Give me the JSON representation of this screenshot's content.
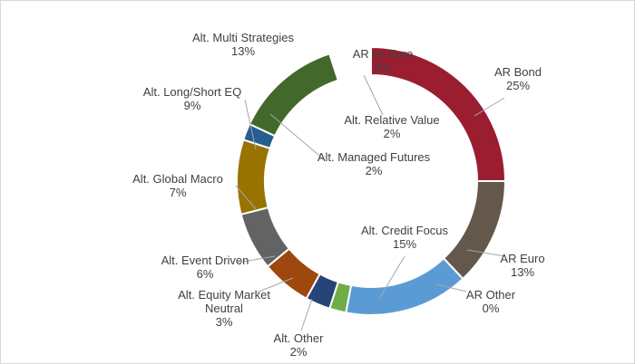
{
  "chart_data": {
    "type": "pie",
    "donut": true,
    "title": "",
    "legend": "none",
    "start_angle_deg": 90,
    "slices": [
      {
        "name": "AR Bond",
        "value": 25,
        "label": "25%",
        "color": "#9a1e30"
      },
      {
        "name": "AR Euro",
        "value": 13,
        "label": "13%",
        "color": "#64574b"
      },
      {
        "name": "AR Other",
        "value": 0,
        "label": "0%",
        "color": "#9c7a5a"
      },
      {
        "name": "Alt. Credit Focus",
        "value": 15,
        "label": "15%",
        "color": "#5b9bd5"
      },
      {
        "name": "Alt. Other",
        "value": 2,
        "label": "2%",
        "color": "#70ad47"
      },
      {
        "name": "Alt. Equity Market Neutral",
        "value": 3,
        "label": "3%",
        "color": "#264478"
      },
      {
        "name": "Alt. Event Driven",
        "value": 6,
        "label": "6%",
        "color": "#9e480e"
      },
      {
        "name": "Alt. Global Macro",
        "value": 7,
        "label": "7%",
        "color": "#636363"
      },
      {
        "name": "Alt. Long/Short EQ",
        "value": 9,
        "label": "9%",
        "color": "#997300"
      },
      {
        "name": "Alt. Managed Futures",
        "value": 2,
        "label": "2%",
        "color": "#255e91"
      },
      {
        "name": "Alt. Multi Strategies",
        "value": 13,
        "label": "13%",
        "color": "#43682b"
      },
      {
        "name": "Alt. Relative Value",
        "value": 2,
        "label": "2%",
        "color": "#ffffff"
      },
      {
        "name": "AR ex Euro",
        "value": 3,
        "label": "3%",
        "color": "#ffffff"
      }
    ]
  }
}
